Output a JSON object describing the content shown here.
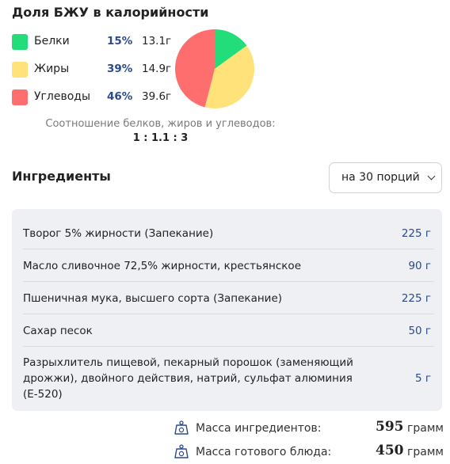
{
  "macros": {
    "title": "Доля БЖУ в калорийности",
    "items": [
      {
        "name": "Белки",
        "percent": "15%",
        "grams": "13.1г",
        "color": "#22dd7a",
        "fraction": 0.15
      },
      {
        "name": "Жиры",
        "percent": "39%",
        "grams": "14.9г",
        "color": "#ffe27a",
        "fraction": 0.39
      },
      {
        "name": "Углеводы",
        "percent": "46%",
        "grams": "39.6г",
        "color": "#ff6e6e",
        "fraction": 0.46
      }
    ],
    "ratio_label": "Соотношение белков, жиров и углеводов:",
    "ratio_value": "1 : 1.1 : 3"
  },
  "ingredients": {
    "title": "Ингредиенты",
    "portion_select": "на 30 порций",
    "items": [
      {
        "name": "Творог 5% жирности (Запекание)",
        "amount": "225 г"
      },
      {
        "name": "Масло сливочное 72,5% жирности, крестьянское",
        "amount": "90 г"
      },
      {
        "name": "Пшеничная мука, высшего сорта (Запекание)",
        "amount": "225 г"
      },
      {
        "name": "Сахар песок",
        "amount": "50 г"
      },
      {
        "name": "Разрыхлитель пищевой, пекарный порошок (заменяющий дрожжи), двойного действия, натрий, сульфат алюминия (Е-520)",
        "amount": "5 г"
      }
    ]
  },
  "totals": {
    "ingredients_mass_label": "Масса ингредиентов:",
    "ingredients_mass_value": "595",
    "ingredients_mass_unit": "грамм",
    "dish_mass_label": "Масса готового блюда:",
    "dish_mass_value": "450",
    "dish_mass_unit": "грамм",
    "icon": "scale-weight-icon"
  }
}
